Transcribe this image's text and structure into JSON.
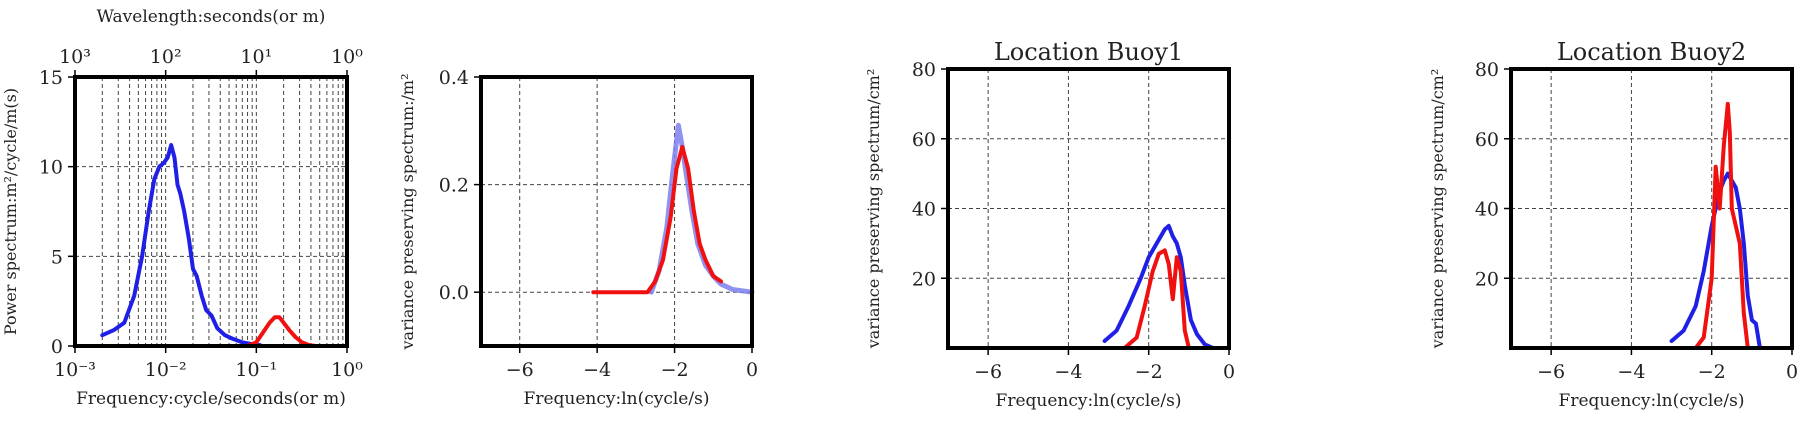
{
  "colors": {
    "blue": "#1f1fe6",
    "red": "#f01010",
    "light_blue": "#7d7ff0"
  },
  "chart_data": [
    {
      "type": "line",
      "xscale": "log",
      "xlabel": "Frequency:cycle/seconds(or m)",
      "ylabel": "Power spectrum:m²/cycle/m(s)",
      "top_xlabel": "Wavelength:seconds(or m)",
      "xlim": [
        0.001,
        1
      ],
      "ylim": [
        0,
        15
      ],
      "x_ticks": [
        0.001,
        0.01,
        0.1,
        1
      ],
      "x_tick_labels": [
        "10⁻³",
        "10⁻²",
        "10⁻¹",
        "10⁰"
      ],
      "top_tick_labels": [
        "10³",
        "10²",
        "10¹",
        "10⁰"
      ],
      "y_ticks": [
        0,
        5,
        10,
        15
      ],
      "y_tick_labels": [
        "0",
        "5",
        "10",
        "15"
      ],
      "grid": true,
      "series": [
        {
          "color": "blue",
          "x": [
            0.002,
            0.0027,
            0.0035,
            0.0045,
            0.0055,
            0.0065,
            0.0075,
            0.0085,
            0.0095,
            0.0105,
            0.0115,
            0.0125,
            0.0135,
            0.0145,
            0.016,
            0.018,
            0.02,
            0.022,
            0.025,
            0.028,
            0.032,
            0.037,
            0.045,
            0.055,
            0.07,
            0.09,
            0.11
          ],
          "y": [
            0.6,
            0.9,
            1.3,
            2.8,
            5.0,
            7.5,
            9.3,
            10.0,
            10.2,
            10.5,
            11.2,
            10.5,
            9.0,
            8.5,
            7.5,
            6.0,
            4.3,
            3.9,
            2.8,
            2.0,
            1.7,
            1.0,
            0.6,
            0.4,
            0.2,
            0.1,
            0.05
          ]
        },
        {
          "color": "red",
          "x": [
            0.08,
            0.1,
            0.12,
            0.14,
            0.16,
            0.18,
            0.2,
            0.23,
            0.27,
            0.32,
            0.38,
            0.45
          ],
          "y": [
            0.0,
            0.2,
            0.8,
            1.3,
            1.6,
            1.6,
            1.3,
            0.9,
            0.5,
            0.2,
            0.05,
            0.0
          ]
        }
      ]
    },
    {
      "type": "line",
      "xlabel": "Frequency:ln(cycle/s)",
      "ylabel": "variance preserving spectrum:/m²",
      "xlim": [
        -7,
        0
      ],
      "ylim": [
        -0.1,
        0.4
      ],
      "x_ticks": [
        -6,
        -4,
        -2,
        0
      ],
      "x_tick_labels": [
        "−6",
        "−4",
        "−2",
        "0"
      ],
      "y_ticks": [
        0,
        0.2,
        0.4
      ],
      "y_tick_labels": [
        "0.0",
        "0.2",
        "0.4"
      ],
      "grid": true,
      "series": [
        {
          "color": "light_blue",
          "x": [
            -2.6,
            -2.4,
            -2.2,
            -2.05,
            -1.9,
            -1.8,
            -1.7,
            -1.55,
            -1.4,
            -1.2,
            -1.0,
            -0.8,
            -0.5,
            0.0
          ],
          "y": [
            0.0,
            0.04,
            0.12,
            0.22,
            0.31,
            0.27,
            0.22,
            0.15,
            0.09,
            0.05,
            0.03,
            0.015,
            0.005,
            0.0
          ]
        },
        {
          "color": "red",
          "x": [
            -4.1,
            -3.0,
            -2.7,
            -2.5,
            -2.3,
            -2.1,
            -1.95,
            -1.8,
            -1.65,
            -1.5,
            -1.35,
            -1.2,
            -1.0,
            -0.8
          ],
          "y": [
            0.0,
            0.0,
            0.0,
            0.02,
            0.06,
            0.14,
            0.23,
            0.27,
            0.23,
            0.15,
            0.09,
            0.06,
            0.03,
            0.02
          ]
        }
      ]
    },
    {
      "type": "line",
      "title": "Location Buoy1",
      "xlabel": "Frequency:ln(cycle/s)",
      "ylabel": "variance preserving spectrum/cm²",
      "xlim": [
        -7,
        0
      ],
      "ylim": [
        0,
        80
      ],
      "x_ticks": [
        -6,
        -4,
        -2,
        0
      ],
      "x_tick_labels": [
        "−6",
        "−4",
        "−2",
        "0"
      ],
      "y_ticks": [
        20,
        40,
        60,
        80
      ],
      "y_tick_labels": [
        "20",
        "40",
        "60",
        "80"
      ],
      "grid": true,
      "series": [
        {
          "color": "blue",
          "x": [
            -3.1,
            -2.8,
            -2.5,
            -2.2,
            -2.0,
            -1.8,
            -1.6,
            -1.5,
            -1.4,
            -1.3,
            -1.2,
            -1.1,
            -0.95,
            -0.8,
            -0.6,
            -0.4
          ],
          "y": [
            2,
            5,
            12,
            20,
            26,
            30,
            34,
            35,
            32,
            30,
            26,
            18,
            8,
            4,
            1,
            0
          ]
        },
        {
          "color": "red",
          "x": [
            -4.0,
            -3.0,
            -2.6,
            -2.3,
            -2.1,
            -1.9,
            -1.75,
            -1.6,
            -1.5,
            -1.4,
            -1.3,
            -1.2,
            -1.1,
            -1.0
          ],
          "y": [
            0,
            0,
            0,
            3,
            12,
            22,
            27,
            28,
            24,
            14,
            26,
            22,
            5,
            0
          ]
        }
      ]
    },
    {
      "type": "line",
      "title": "Location Buoy2",
      "xlabel": "Frequency:ln(cycle/s)",
      "ylabel": "variance preserving spectrum/cm²",
      "xlim": [
        -7,
        0
      ],
      "ylim": [
        0,
        80
      ],
      "x_ticks": [
        -6,
        -4,
        -2,
        0
      ],
      "x_tick_labels": [
        "−6",
        "−4",
        "−2",
        "0"
      ],
      "y_ticks": [
        20,
        40,
        60,
        80
      ],
      "y_tick_labels": [
        "20",
        "40",
        "60",
        "80"
      ],
      "grid": true,
      "series": [
        {
          "color": "blue",
          "x": [
            -3.0,
            -2.7,
            -2.4,
            -2.2,
            -2.0,
            -1.8,
            -1.7,
            -1.6,
            -1.5,
            -1.4,
            -1.3,
            -1.2,
            -1.1,
            -1.0,
            -0.9,
            -0.8
          ],
          "y": [
            2,
            5,
            12,
            22,
            35,
            45,
            48,
            50,
            48,
            46,
            40,
            30,
            15,
            8,
            7,
            0
          ]
        },
        {
          "color": "red",
          "x": [
            -4.0,
            -2.8,
            -2.4,
            -2.2,
            -2.0,
            -1.9,
            -1.8,
            -1.7,
            -1.6,
            -1.55,
            -1.5,
            -1.4,
            -1.3,
            -1.2,
            -1.1
          ],
          "y": [
            0,
            0,
            0,
            3,
            20,
            52,
            40,
            58,
            70,
            62,
            40,
            35,
            30,
            10,
            0
          ]
        }
      ]
    }
  ]
}
